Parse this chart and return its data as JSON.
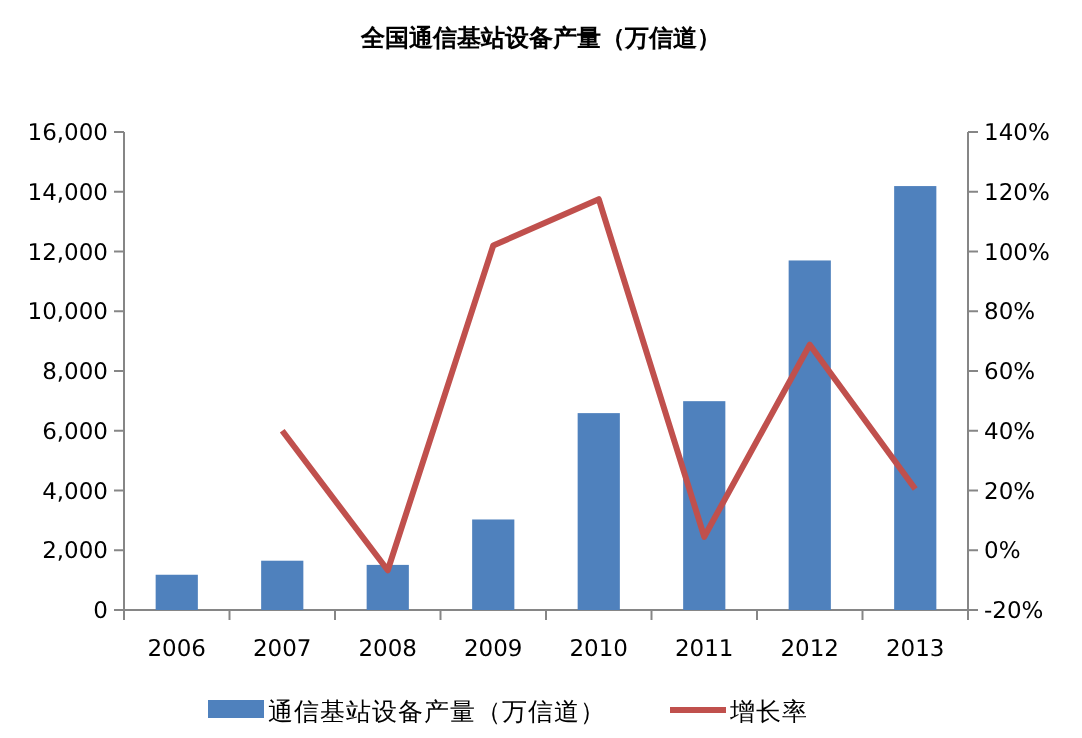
{
  "chart_data": {
    "type": "bar",
    "title": "全国通信基站设备产量（万信道）",
    "categories": [
      "2006",
      "2007",
      "2008",
      "2009",
      "2010",
      "2011",
      "2012",
      "2013"
    ],
    "series": [
      {
        "name": "通信基站设备产量（万信道）",
        "color": "#4f81bd",
        "values": [
          1180,
          1650,
          1510,
          3030,
          6590,
          6990,
          11700,
          14190
        ]
      },
      {
        "name": "增长率",
        "color": "#c0504d",
        "type": "line",
        "axis": "y2",
        "values": [
          null,
          40,
          -6.7,
          102,
          117.5,
          4.5,
          68.8,
          20.5
        ]
      }
    ],
    "ylim": [
      0,
      16000
    ],
    "yticks": [
      0,
      {
        "value": 2000,
        "label": "2,000"
      },
      {
        "value": 4000,
        "label": "4,000"
      },
      {
        "value": 6000,
        "label": "6,000"
      },
      {
        "value": 8000,
        "label": "8,000"
      },
      {
        "value": 10000,
        "label": "10,000"
      },
      {
        "value": 12000,
        "label": "12,000"
      },
      {
        "value": 14000,
        "label": "14,000"
      },
      {
        "value": 16000,
        "label": "16,000"
      }
    ],
    "y2lim": [
      -20,
      140
    ],
    "y2ticks": [
      {
        "value": -20,
        "label": "-20%"
      },
      {
        "value": 0,
        "label": "0%"
      },
      {
        "value": 20,
        "label": "20%"
      },
      {
        "value": 40,
        "label": "40%"
      },
      {
        "value": 60,
        "label": "60%"
      },
      {
        "value": 80,
        "label": "80%"
      },
      {
        "value": 100,
        "label": "100%"
      },
      {
        "value": 120,
        "label": "120%"
      },
      {
        "value": 140,
        "label": "140%"
      }
    ],
    "legend": "bottom"
  }
}
